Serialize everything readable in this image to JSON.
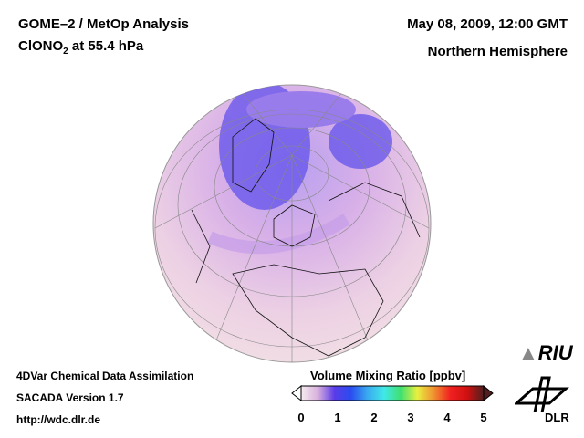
{
  "header": {
    "title_line1": "GOME–2 / MetOp Analysis",
    "title_line2_prefix": "ClONO",
    "title_line2_sub": "2",
    "title_line2_suffix": " at 55.4 hPa",
    "date": "May 08, 2009, 12:00 GMT",
    "region": "Northern Hemisphere"
  },
  "footer": {
    "line1": "4DVar Chemical Data Assimilation",
    "line2": "SACADA Version 1.7",
    "line3": "http://wdc.dlr.de"
  },
  "colorbar": {
    "label": "Volume Mixing Ratio [ppbv]",
    "ticks": [
      "0",
      "1",
      "2",
      "3",
      "4",
      "5"
    ],
    "colors": [
      "#f4ecef",
      "#d8b0dc",
      "#5a3ce8",
      "#2a4cf0",
      "#3aaaf0",
      "#40e8e8",
      "#40e070",
      "#e8f040",
      "#f09030",
      "#f02020",
      "#d01010",
      "#502020"
    ]
  },
  "logos": {
    "riu": "RIU",
    "dlr": "DLR"
  }
}
